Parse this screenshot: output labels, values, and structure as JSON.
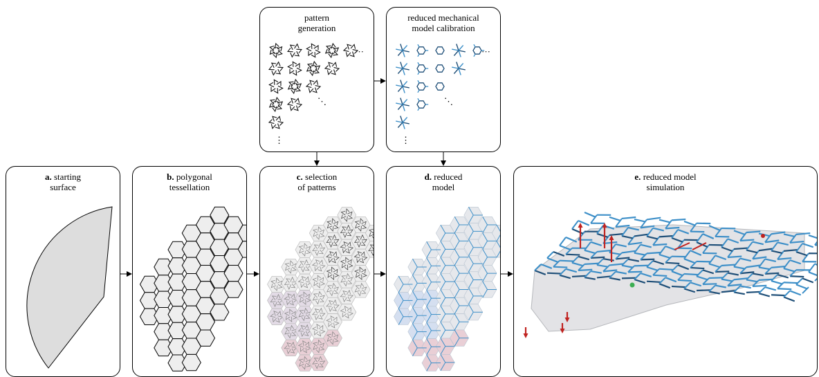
{
  "panels": {
    "pattern_generation": {
      "title_l1": "pattern",
      "title_l2": "generation",
      "ellipsis_h": "···",
      "ellipsis_v": "⋮",
      "ellipsis_d": "⋱"
    },
    "calibration": {
      "title_l1": "reduced mechanical",
      "title_l2": "model calibration",
      "ellipsis_h": "···",
      "ellipsis_v": "⋮",
      "ellipsis_d": "⋱"
    },
    "a": {
      "letter": "a.",
      "title_l1": " starting",
      "title_l2": "surface"
    },
    "b": {
      "letter": "b.",
      "title_l1": " polygonal",
      "title_l2": "tessellation"
    },
    "c": {
      "letter": "c.",
      "title_l1": " selection",
      "title_l2": "of patterns"
    },
    "d": {
      "letter": "d.",
      "title_l1": " reduced",
      "title_l2": "model"
    },
    "e": {
      "letter": "e.",
      "title_l1": " reduced model",
      "title_l2": "simulation"
    }
  },
  "colors": {
    "surface_fill": "#dddddd",
    "cell_fill": "#eeeeee",
    "beam_blue": "#3d8fc8",
    "beam_dark": "#1f4f78",
    "force_red": "#c0221f",
    "pink_tint": "#e9cfd6",
    "blue_tint": "#d5dff0"
  }
}
